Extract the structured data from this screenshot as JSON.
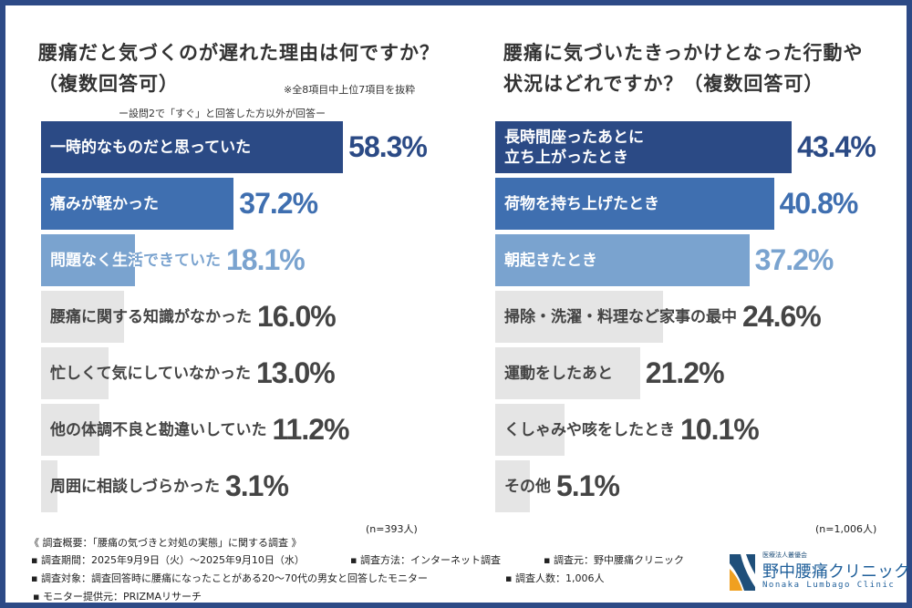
{
  "left": {
    "title_line1": "腰痛だと気づくのが遅れた理由は何ですか？",
    "title_line2": "（複数回答可）",
    "note": "※全8項目中上位7項目を抜粋",
    "subnote": "ー設問2で「すぐ」と回答した方以外が回答ー",
    "n": "(n=393人)"
  },
  "right": {
    "title_line1": "腰痛に気づいたきっかけとなった行動や",
    "title_line2": "状況はどれですか？（複数回答可）",
    "n": "(n=1,006人)"
  },
  "chart_data": [
    {
      "type": "bar",
      "orientation": "horizontal",
      "title": "腰痛だと気づくのが遅れた理由は何ですか？（複数回答可）",
      "unit": "%",
      "categories": [
        "一時的なものだと思っていた",
        "痛みが軽かった",
        "問題なく生活できていた",
        "腰痛に関する知識がなかった",
        "忙しくて気にしていなかった",
        "他の体調不良と勘違いしていた",
        "周囲に相談しづらかった"
      ],
      "values": [
        58.3,
        37.2,
        18.1,
        16.0,
        13.0,
        11.2,
        3.1
      ],
      "value_labels": [
        "58.3%",
        "37.2%",
        "18.1%",
        "16.0%",
        "13.0%",
        "11.2%",
        "3.1%"
      ],
      "colors": [
        "#2b4a85",
        "#3f6fb0",
        "#7aa3cf",
        "#e5e5e5",
        "#e5e5e5",
        "#e5e5e5",
        "#e5e5e5"
      ],
      "value_colors": [
        "#2b4a85",
        "#3f6fb0",
        "#7aa3cf",
        "#444444",
        "#444444",
        "#444444",
        "#444444"
      ]
    },
    {
      "type": "bar",
      "orientation": "horizontal",
      "title": "腰痛に気づいたきっかけとなった行動や状況はどれですか？（複数回答可）",
      "unit": "%",
      "categories": [
        "長時間座ったあとに\n立ち上がったとき",
        "荷物を持ち上げたとき",
        "朝起きたとき",
        "掃除・洗濯・料理など家事の最中",
        "運動をしたあと",
        "くしゃみや咳をしたとき",
        "その他"
      ],
      "values": [
        43.4,
        40.8,
        37.2,
        24.6,
        21.2,
        10.1,
        5.1
      ],
      "value_labels": [
        "43.4%",
        "40.8%",
        "37.2%",
        "24.6%",
        "21.2%",
        "10.1%",
        "5.1%"
      ],
      "colors": [
        "#2b4a85",
        "#3f6fb0",
        "#7aa3cf",
        "#e5e5e5",
        "#e5e5e5",
        "#e5e5e5",
        "#e5e5e5"
      ],
      "value_colors": [
        "#2b4a85",
        "#3f6fb0",
        "#7aa3cf",
        "#444444",
        "#444444",
        "#444444",
        "#444444"
      ]
    }
  ],
  "footer": {
    "heading": "《 調査概要：「腰痛の気づきと対処の実態」に関する調査 》",
    "period": "▪ 調査期間：2025年9月9日（火）～2025年9月10日（水）",
    "method": "▪ 調査方法：インターネット調査",
    "org": "▪ 調査元：野中腰痛クリニック",
    "target": "▪ 調査対象：調査回答時に腰痛になったことがある20～70代の男女と回答したモニター",
    "count": "▪ 調査人数：1,006人",
    "provider": "▪ モニター提供元：PRIZMAリサーチ"
  },
  "logo": {
    "corp": "医療法人叢優会",
    "name": "野中腰痛クリニック",
    "roman": "Nonaka Lumbago Clinic"
  }
}
